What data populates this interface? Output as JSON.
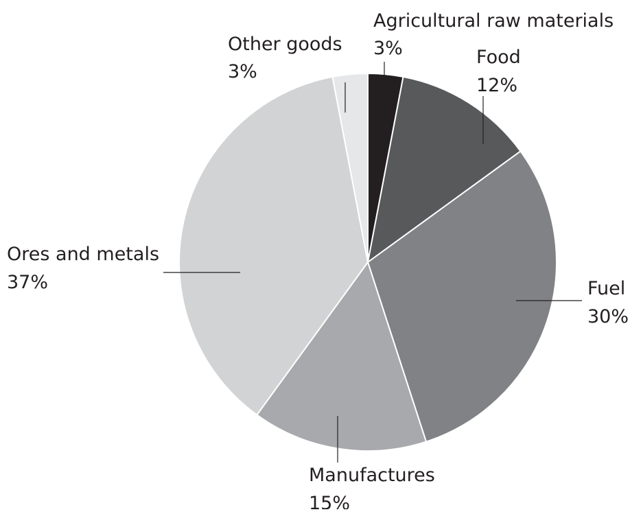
{
  "chart_data": {
    "type": "pie",
    "title": "",
    "slices": [
      {
        "label": "Agricultural raw materials",
        "value": 3,
        "value_label": "3%",
        "color": "#231f20"
      },
      {
        "label": "Food",
        "value": 12,
        "value_label": "12%",
        "color": "#58595b"
      },
      {
        "label": "Fuel",
        "value": 30,
        "value_label": "30%",
        "color": "#808285"
      },
      {
        "label": "Manufactures",
        "value": 15,
        "value_label": "15%",
        "color": "#a7a9ac"
      },
      {
        "label": "Ores and metals",
        "value": 37,
        "value_label": "37%",
        "color": "#d1d3d4"
      },
      {
        "label": "Other goods",
        "value": 3,
        "value_label": "3%",
        "color": "#e6e7e8"
      }
    ],
    "start_direction": "top",
    "direction": "clockwise",
    "slice_border_color": "#ffffff",
    "leader_line_color": "#231f20"
  }
}
